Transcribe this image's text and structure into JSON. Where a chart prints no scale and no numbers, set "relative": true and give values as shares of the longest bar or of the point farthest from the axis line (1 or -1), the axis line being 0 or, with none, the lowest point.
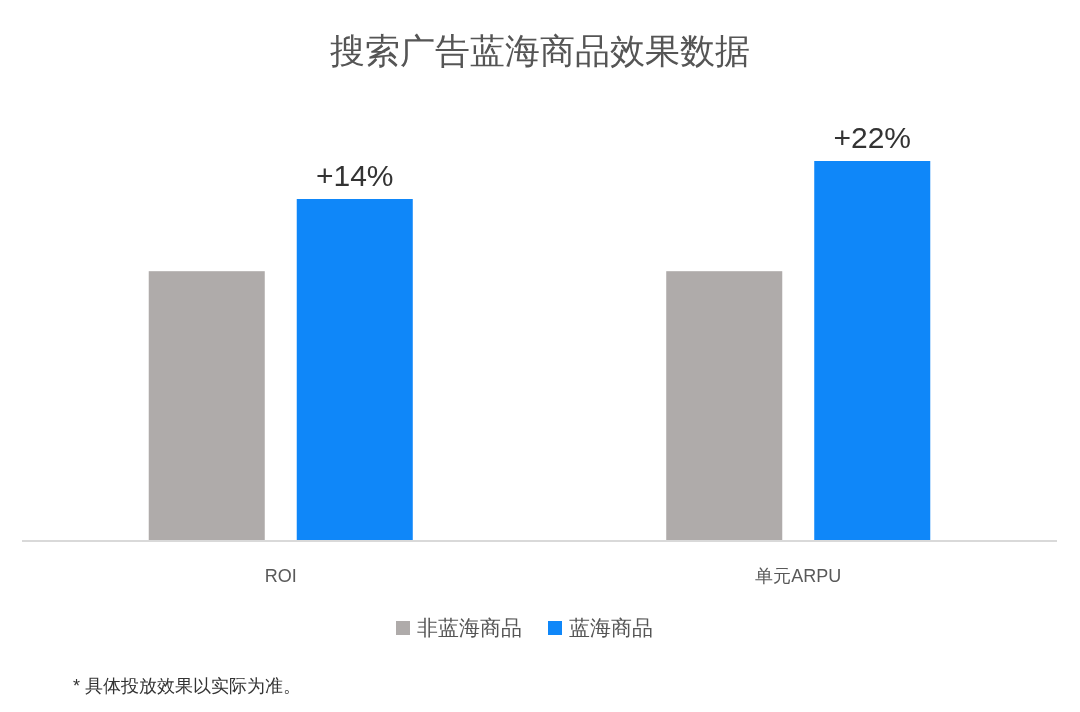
{
  "chart_data": {
    "type": "bar",
    "title": "搜索广告蓝海商品效果数据",
    "categories": [
      "ROI",
      "单元ARPU"
    ],
    "relative": true,
    "series": [
      {
        "name": "非蓝海商品",
        "color": "#afabaa",
        "values": [
          0.71,
          0.71
        ]
      },
      {
        "name": "蓝海商品",
        "color": "#0f87f9",
        "values": [
          0.9,
          1
        ]
      }
    ],
    "legend": "bottom",
    "annotations": [
      "+14%",
      "+22%",
      "* 具体投放效果以实际为准。"
    ]
  }
}
